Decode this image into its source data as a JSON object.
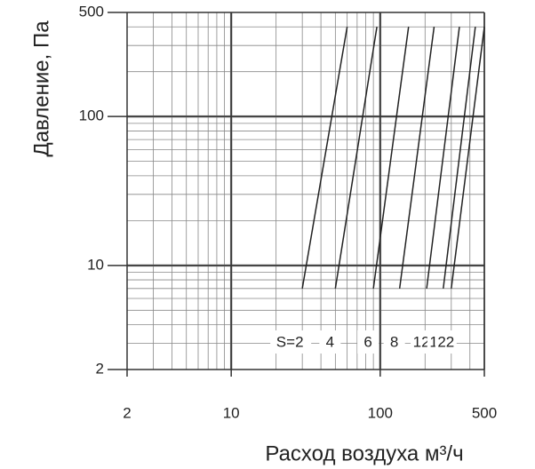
{
  "chart_data": {
    "type": "line",
    "x_label": "Расход воздуха м³/ч",
    "y_label": "Давление, Па",
    "xscale": "log",
    "yscale": "log",
    "grid": true,
    "color": "#222222",
    "xlim": [
      2,
      500
    ],
    "ylim": [
      2,
      500
    ],
    "xticks": [
      2,
      10,
      100,
      500
    ],
    "yticks": [
      2,
      10,
      100,
      500
    ],
    "series": [
      {
        "name": "S=2",
        "x": [
          30,
          60
        ],
        "values": [
          7,
          400
        ]
      },
      {
        "name": "4",
        "x": [
          50,
          95
        ],
        "values": [
          7,
          400
        ]
      },
      {
        "name": "6",
        "x": [
          90,
          155
        ],
        "values": [
          7,
          400
        ]
      },
      {
        "name": "8",
        "x": [
          135,
          230
        ],
        "values": [
          7,
          400
        ]
      },
      {
        "name": "12",
        "x": [
          205,
          340
        ],
        "values": [
          7,
          400
        ]
      },
      {
        "name": "18",
        "x": [
          265,
          435
        ],
        "values": [
          7,
          400
        ]
      },
      {
        "name": "22",
        "x": [
          300,
          500
        ],
        "values": [
          7,
          400
        ]
      }
    ]
  }
}
